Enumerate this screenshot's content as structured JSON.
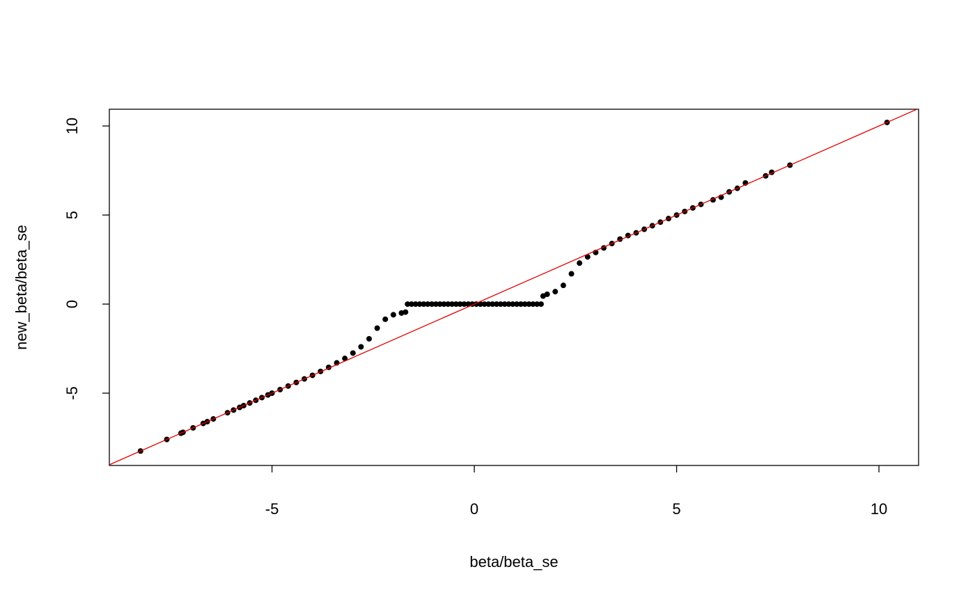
{
  "chart_data": {
    "type": "scatter",
    "x_label": "beta/beta_se",
    "y_label": "new_beta/beta_se",
    "x": [
      -8.25,
      -7.6,
      -7.25,
      -7.2,
      -6.95,
      -6.7,
      -6.6,
      -6.45,
      -6.1,
      -5.95,
      -5.8,
      -5.7,
      -5.55,
      -5.4,
      -5.25,
      -5.1,
      -5.0,
      -4.8,
      -4.6,
      -4.4,
      -4.2,
      -4.0,
      -3.8,
      -3.6,
      -3.4,
      -3.2,
      -3.0,
      -2.8,
      -2.6,
      -2.4,
      -2.2,
      -2.0,
      -1.8,
      -1.7,
      -1.65,
      -1.55,
      -1.45,
      -1.35,
      -1.25,
      -1.15,
      -1.05,
      -0.95,
      -0.85,
      -0.75,
      -0.65,
      -0.55,
      -0.45,
      -0.35,
      -0.25,
      -0.15,
      -0.05,
      0.05,
      0.15,
      0.25,
      0.35,
      0.45,
      0.55,
      0.65,
      0.75,
      0.85,
      0.95,
      1.05,
      1.15,
      1.25,
      1.35,
      1.45,
      1.55,
      1.65,
      1.7,
      1.8,
      2.0,
      2.2,
      2.4,
      2.6,
      2.8,
      3.0,
      3.2,
      3.4,
      3.6,
      3.8,
      4.0,
      4.2,
      4.4,
      4.6,
      4.8,
      5.0,
      5.2,
      5.4,
      5.6,
      5.9,
      6.1,
      6.3,
      6.5,
      6.7,
      7.2,
      7.35,
      7.8,
      10.2
    ],
    "values": [
      -8.25,
      -7.6,
      -7.25,
      -7.2,
      -6.95,
      -6.7,
      -6.6,
      -6.45,
      -6.1,
      -5.95,
      -5.8,
      -5.7,
      -5.55,
      -5.4,
      -5.25,
      -5.1,
      -5.0,
      -4.8,
      -4.6,
      -4.4,
      -4.2,
      -4.0,
      -3.78,
      -3.55,
      -3.3,
      -3.05,
      -2.75,
      -2.4,
      -1.95,
      -1.35,
      -0.85,
      -0.6,
      -0.5,
      -0.45,
      0,
      0,
      0,
      0,
      0,
      0,
      0,
      0,
      0,
      0,
      0,
      0,
      0,
      0,
      0,
      0,
      0,
      0,
      0,
      0,
      0,
      0,
      0,
      0,
      0,
      0,
      0,
      0,
      0,
      0,
      0,
      0,
      0,
      0,
      0.45,
      0.55,
      0.7,
      1.05,
      1.7,
      2.3,
      2.65,
      2.9,
      3.15,
      3.4,
      3.65,
      3.85,
      4.0,
      4.2,
      4.4,
      4.6,
      4.8,
      5.0,
      5.2,
      5.4,
      5.6,
      5.85,
      6.0,
      6.3,
      6.5,
      6.8,
      7.2,
      7.4,
      7.8,
      10.2
    ],
    "color": "#000000",
    "reference_line": {
      "intercept": 0,
      "slope": 1,
      "color": "#e00000"
    },
    "xlim": [
      -9.02,
      10.98
    ],
    "ylim": [
      -9.06,
      10.94
    ],
    "xticks": [
      -5,
      0,
      5,
      10
    ],
    "yticks": [
      -5,
      0,
      5,
      10
    ]
  }
}
